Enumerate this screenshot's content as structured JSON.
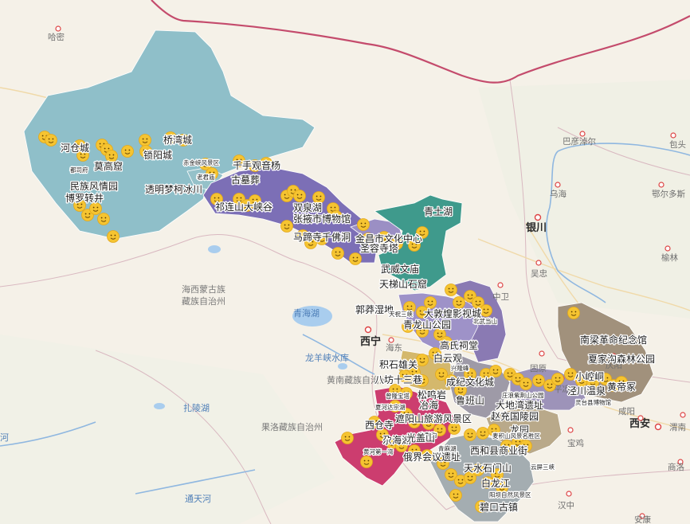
{
  "map": {
    "cities": [
      {
        "name": "哈密",
        "kind": "city"
      },
      {
        "name": "巴彦淖尔",
        "kind": "city"
      },
      {
        "name": "包头",
        "kind": "city"
      },
      {
        "name": "乌海",
        "kind": "city"
      },
      {
        "name": "鄂尔多斯",
        "kind": "city"
      },
      {
        "name": "银川",
        "kind": "major"
      },
      {
        "name": "榆林",
        "kind": "city"
      },
      {
        "name": "吴忠",
        "kind": "city"
      },
      {
        "name": "中卫",
        "kind": "city"
      },
      {
        "name": "西宁",
        "kind": "major"
      },
      {
        "name": "海东",
        "kind": "city"
      },
      {
        "name": "固原",
        "kind": "city"
      },
      {
        "name": "平凉",
        "kind": "city"
      },
      {
        "name": "庆阳",
        "kind": "city"
      },
      {
        "name": "西安",
        "kind": "major"
      },
      {
        "name": "渭南",
        "kind": "city"
      },
      {
        "name": "宝鸡",
        "kind": "city"
      },
      {
        "name": "咸阳",
        "kind": "city"
      },
      {
        "name": "商洛",
        "kind": "city"
      },
      {
        "name": "汉中",
        "kind": "city"
      },
      {
        "name": "安康",
        "kind": "city"
      }
    ],
    "regions": [
      "海西蒙古族藏族自治州",
      "黄南藏族自治州",
      "果洛藏族自治州"
    ],
    "water": [
      "青海湖",
      "龙羊峡水库",
      "扎陵湖",
      "通天河",
      "河"
    ],
    "pois": [
      {
        "name": "桥湾城",
        "size": "big"
      },
      {
        "name": "河仓城",
        "size": "big"
      },
      {
        "name": "都司府",
        "size": "small"
      },
      {
        "name": "莫高窟",
        "size": "big"
      },
      {
        "name": "锁阳城",
        "size": "big"
      },
      {
        "name": "赤金峡风景区",
        "size": "small"
      },
      {
        "name": "千手观音杨",
        "size": "big"
      },
      {
        "name": "老君庙",
        "size": "small"
      },
      {
        "name": "古墓葬",
        "size": "big"
      },
      {
        "name": "民族风情园",
        "size": "big"
      },
      {
        "name": "博罗转井",
        "size": "big"
      },
      {
        "name": "透明梦柯冰川",
        "size": "big"
      },
      {
        "name": "祁连山大峡谷",
        "size": "big"
      },
      {
        "name": "双泉湖",
        "size": "big"
      },
      {
        "name": "张掖市博物馆",
        "size": "big"
      },
      {
        "name": "青土湖",
        "size": "big"
      },
      {
        "name": "马蹄寺千佛洞",
        "size": "big"
      },
      {
        "name": "金昌市文化中心",
        "size": "big"
      },
      {
        "name": "圣容寺塔",
        "size": "big"
      },
      {
        "name": "武威文庙",
        "size": "big"
      },
      {
        "name": "天梯山石窟",
        "size": "big"
      },
      {
        "name": "郭莽湿地",
        "size": "big"
      },
      {
        "name": "天祝三峡",
        "size": "small"
      },
      {
        "name": "大敦煌影视城",
        "size": "big"
      },
      {
        "name": "北武当山",
        "size": "small"
      },
      {
        "name": "青龙山公园",
        "size": "big"
      },
      {
        "name": "高氏祠堂",
        "size": "big"
      },
      {
        "name": "白云观",
        "size": "big"
      },
      {
        "name": "积石雄关",
        "size": "big"
      },
      {
        "name": "兴隆峰",
        "size": "small"
      },
      {
        "name": "八坊十三巷",
        "size": "big"
      },
      {
        "name": "成纪文化城",
        "size": "big"
      },
      {
        "name": "松鸣岩",
        "size": "big"
      },
      {
        "name": "鲁班山",
        "size": "big"
      },
      {
        "name": "庄浪紫荆山公园",
        "size": "small"
      },
      {
        "name": "大地湾遗址",
        "size": "big"
      },
      {
        "name": "冶海",
        "size": "big"
      },
      {
        "name": "曾隆宝塔",
        "size": "small"
      },
      {
        "name": "夏河达宗湖",
        "size": "small"
      },
      {
        "name": "遮阳山旅游风景区",
        "size": "big"
      },
      {
        "name": "赵充国陵园",
        "size": "big"
      },
      {
        "name": "西仓寺",
        "size": "big"
      },
      {
        "name": "尕海湖",
        "size": "big"
      },
      {
        "name": "官鹅沟",
        "size": "small"
      },
      {
        "name": "龙园",
        "size": "big"
      },
      {
        "name": "麦积山风景名胜区",
        "size": "small"
      },
      {
        "name": "光盖山",
        "size": "big"
      },
      {
        "name": "黄河第一湾",
        "size": "small"
      },
      {
        "name": "青麻湖",
        "size": "small"
      },
      {
        "name": "西和县商业街",
        "size": "big"
      },
      {
        "name": "俄界会议遗址",
        "size": "big"
      },
      {
        "name": "天水石门山",
        "size": "big"
      },
      {
        "name": "云屏三峡",
        "size": "small"
      },
      {
        "name": "白龙江",
        "size": "big"
      },
      {
        "name": "阳坝自然风景区",
        "size": "small"
      },
      {
        "name": "碧口古镇",
        "size": "big"
      },
      {
        "name": "南梁革命纪念馆",
        "size": "big"
      },
      {
        "name": "夏家沟森林公园",
        "size": "big"
      },
      {
        "name": "小崆峒",
        "size": "big"
      },
      {
        "name": "泾川温泉",
        "size": "big"
      },
      {
        "name": "黄帝冢",
        "size": "big"
      },
      {
        "name": "灵台县博物馆",
        "size": "small"
      }
    ],
    "region_colors": {
      "jiuquan": "#8fbfc9",
      "jiayuguan": "#95c1c9",
      "zhangye": "#7c6fb6",
      "jinchang": "#9b8fc4",
      "wuwei": "#3f9a8c",
      "lanzhou": "#9e92c8",
      "baiyin": "#8a7ab3",
      "linxia": "#d4b86c",
      "dingxi": "#9e9aa7",
      "gannan": "#cc3d6f",
      "longnan": "#a4adb1",
      "tianshui": "#b9a98a",
      "pingliang": "#9d93b9",
      "qingyang": "#a1917c"
    },
    "marker_color": "#f5c431"
  }
}
